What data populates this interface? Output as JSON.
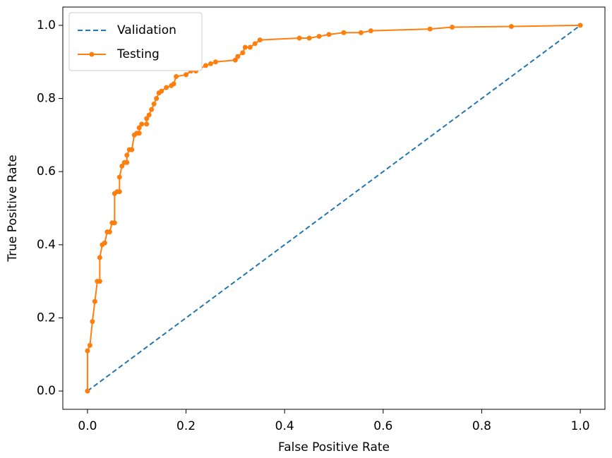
{
  "chart_data": {
    "type": "line",
    "xlabel": "False Positive Rate",
    "ylabel": "True Positive Rate",
    "xlim": [
      -0.05,
      1.05
    ],
    "ylim": [
      -0.05,
      1.05
    ],
    "xticks": [
      {
        "value": 0,
        "label": "0.0"
      },
      0.2,
      0.4,
      0.6,
      0.8,
      {
        "value": 1,
        "label": "1.0"
      }
    ],
    "yticks": [
      {
        "value": 0,
        "label": "0.0"
      },
      0.2,
      0.4,
      0.6,
      0.8,
      {
        "value": 1,
        "label": "1.0"
      }
    ],
    "legend": "upper left",
    "series": [
      {
        "name": "Validation",
        "color": "#1f77b4",
        "linestyle": "dashed",
        "marker": false,
        "x": [
          0,
          1
        ],
        "values": [
          0,
          1
        ]
      },
      {
        "name": "Testing",
        "color": "#ff7f0e",
        "linestyle": "solid",
        "marker": true,
        "x": [
          0,
          0,
          0.005,
          0.01,
          0.015,
          0.02,
          0.025,
          0.025,
          0.03,
          0.035,
          0.04,
          0.045,
          0.05,
          0.055,
          0.055,
          0.06,
          0.065,
          0.065,
          0.07,
          0.075,
          0.08,
          0.08,
          0.085,
          0.09,
          0.095,
          0.1,
          0.105,
          0.105,
          0.11,
          0.12,
          0.12,
          0.125,
          0.13,
          0.135,
          0.14,
          0.145,
          0.15,
          0.16,
          0.17,
          0.175,
          0.18,
          0.2,
          0.21,
          0.22,
          0.24,
          0.25,
          0.26,
          0.3,
          0.305,
          0.315,
          0.32,
          0.33,
          0.34,
          0.35,
          0.43,
          0.45,
          0.47,
          0.49,
          0.52,
          0.555,
          0.575,
          0.695,
          0.74,
          0.86,
          1
        ],
        "values": [
          0,
          0.11,
          0.125,
          0.19,
          0.245,
          0.3,
          0.3,
          0.365,
          0.4,
          0.405,
          0.435,
          0.435,
          0.46,
          0.46,
          0.54,
          0.545,
          0.545,
          0.585,
          0.615,
          0.625,
          0.625,
          0.645,
          0.66,
          0.66,
          0.7,
          0.705,
          0.705,
          0.72,
          0.73,
          0.73,
          0.745,
          0.755,
          0.77,
          0.785,
          0.8,
          0.815,
          0.82,
          0.83,
          0.835,
          0.84,
          0.86,
          0.865,
          0.875,
          0.875,
          0.89,
          0.895,
          0.9,
          0.905,
          0.915,
          0.925,
          0.94,
          0.94,
          0.95,
          0.96,
          0.965,
          0.965,
          0.97,
          0.975,
          0.98,
          0.98,
          0.985,
          0.99,
          0.995,
          0.997,
          1
        ]
      }
    ]
  }
}
